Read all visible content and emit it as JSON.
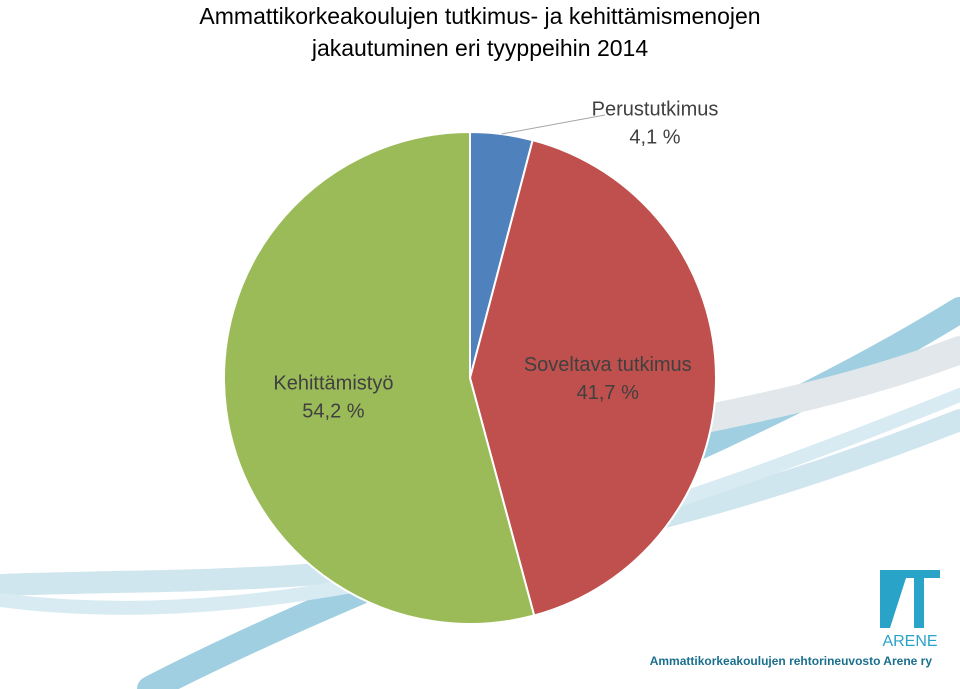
{
  "chart_data": {
    "type": "pie",
    "title": "Ammattikorkeakoulujen tutkimus- ja kehittämismenojen jakautuminen eri tyyppeihin 2014",
    "categories": [
      "Perustutkimus",
      "Soveltava tutkimus",
      "Kehittämistyö"
    ],
    "values": [
      4.1,
      41.7,
      54.2
    ],
    "value_labels": [
      "4,1 %",
      "41,7 %",
      "54,2 %"
    ],
    "colors": [
      "#4f81bd",
      "#c0504d",
      "#9bbb59"
    ]
  },
  "logo": {
    "name": "ARENE",
    "caption": "Ammattikorkeakoulujen rehtorineuvosto Arene ry"
  }
}
